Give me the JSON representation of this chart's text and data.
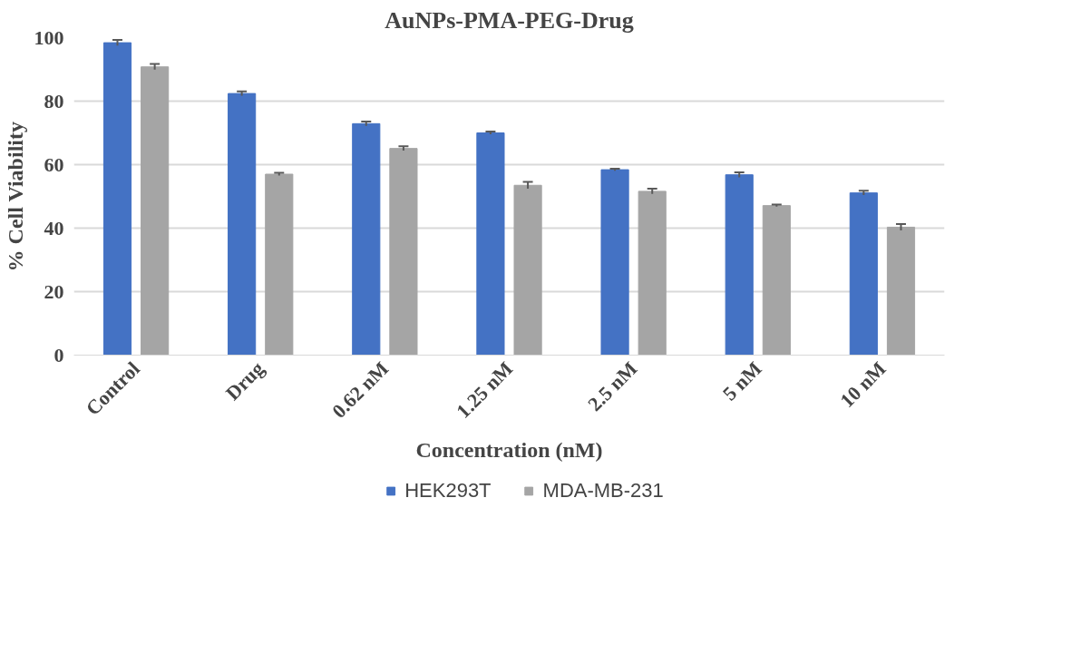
{
  "chart_data": {
    "type": "bar",
    "title": "AuNPs-PMA-PEG-Drug",
    "xlabel": "Concentration (nM)",
    "ylabel": "% Cell Viability",
    "categories": [
      "Control",
      "Drug",
      "0.62 nM",
      "1.25 nM",
      "2.5 nM",
      "5 nM",
      "10 nM"
    ],
    "series": [
      {
        "name": "HEK293T",
        "color": "#4472c4",
        "values": [
          98.4,
          82.4,
          72.9,
          70.0,
          58.4,
          56.8,
          51.1
        ],
        "errors": [
          0.9,
          0.7,
          0.7,
          0.4,
          0.3,
          0.8,
          0.7
        ]
      },
      {
        "name": "MDA-MB-231",
        "color": "#a5a5a5",
        "values": [
          90.8,
          57.0,
          65.1,
          53.5,
          51.6,
          47.1,
          40.3
        ],
        "errors": [
          0.9,
          0.4,
          0.7,
          1.1,
          0.8,
          0.3,
          1.0
        ]
      }
    ],
    "ylim": [
      0,
      100
    ],
    "yticks": [
      0,
      20,
      40,
      60,
      80,
      100
    ],
    "grid": "y",
    "legend": "bottom"
  }
}
